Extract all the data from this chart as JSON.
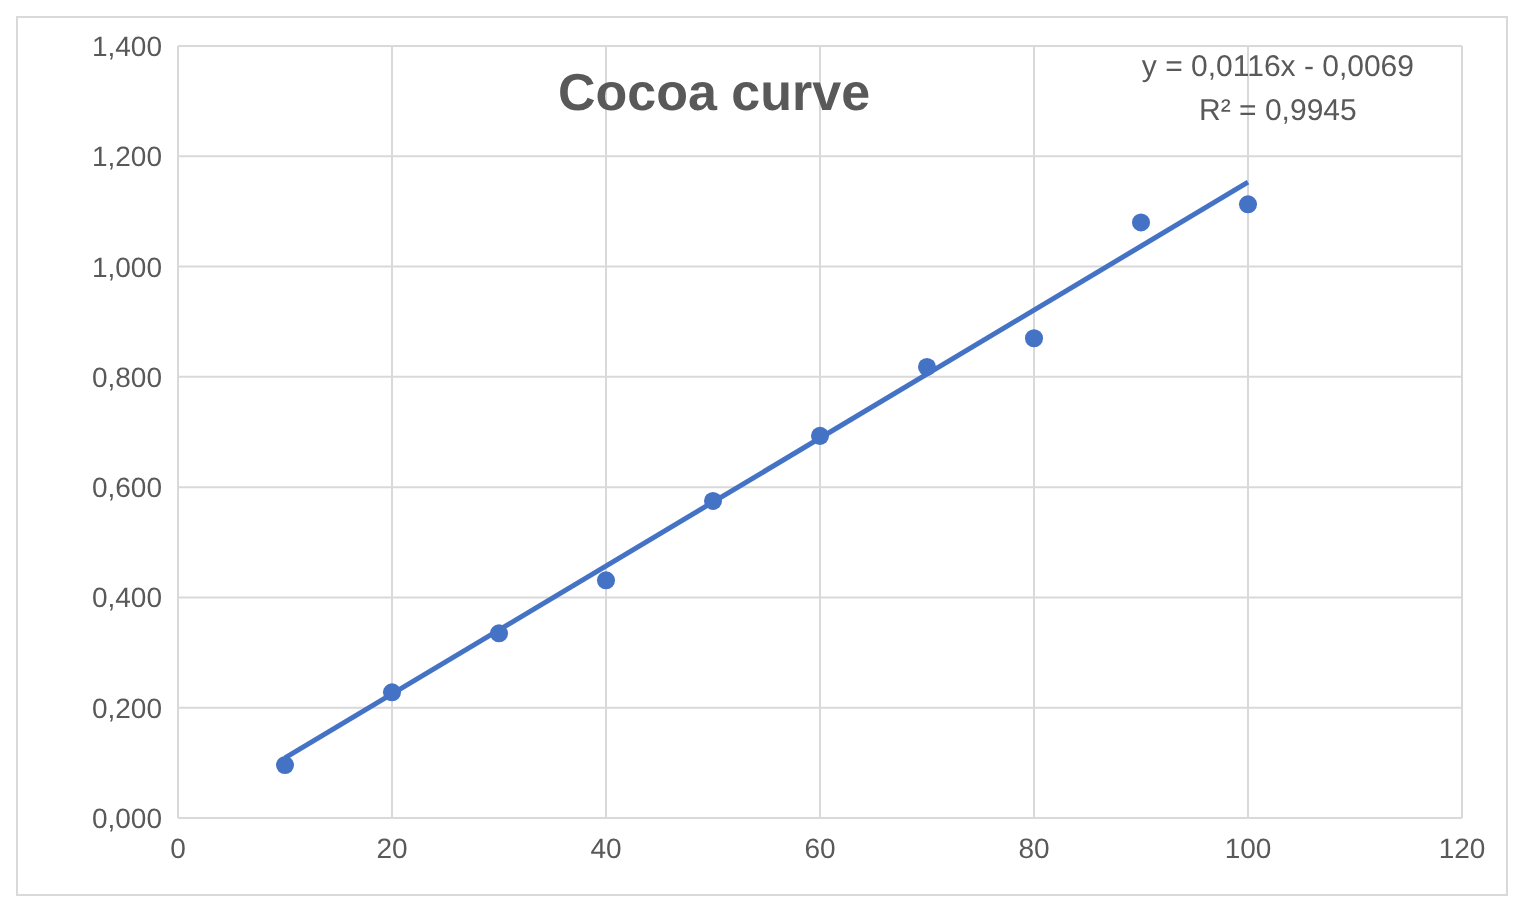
{
  "chart_data": {
    "type": "scatter",
    "title": "Cocoa curve",
    "annotations": [
      "y = 0,0116x - 0,0069",
      "R² = 0,9945"
    ],
    "series": [
      {
        "color": "#4472c4",
        "marker": "circle",
        "x": [
          10,
          20,
          30,
          40,
          50,
          60,
          70,
          80,
          90,
          100
        ],
        "values": [
          0.096,
          0.228,
          0.335,
          0.431,
          0.575,
          0.693,
          0.818,
          0.87,
          1.08,
          1.113
        ]
      },
      {
        "type": "line",
        "color": "#4472c4",
        "marker": "none",
        "line_style": "solid",
        "x": [
          10,
          100
        ],
        "values": [
          0.109,
          1.153
        ]
      }
    ],
    "xlim": [
      0,
      120
    ],
    "xticks": [
      0,
      20,
      40,
      60,
      80,
      100,
      120
    ],
    "ylim": [
      0,
      1.4
    ],
    "yticks": [
      {
        "value": 0,
        "label": "0,000"
      },
      {
        "value": 0.2,
        "label": "0,200"
      },
      {
        "value": 0.4,
        "label": "0,400"
      },
      {
        "value": 0.6,
        "label": "0,600"
      },
      {
        "value": 0.8,
        "label": "0,800"
      },
      {
        "value": 1.0,
        "label": "1,000"
      },
      {
        "value": 1.2,
        "label": "1,200"
      },
      {
        "value": 1.4,
        "label": "1,400"
      }
    ],
    "grid": true
  }
}
